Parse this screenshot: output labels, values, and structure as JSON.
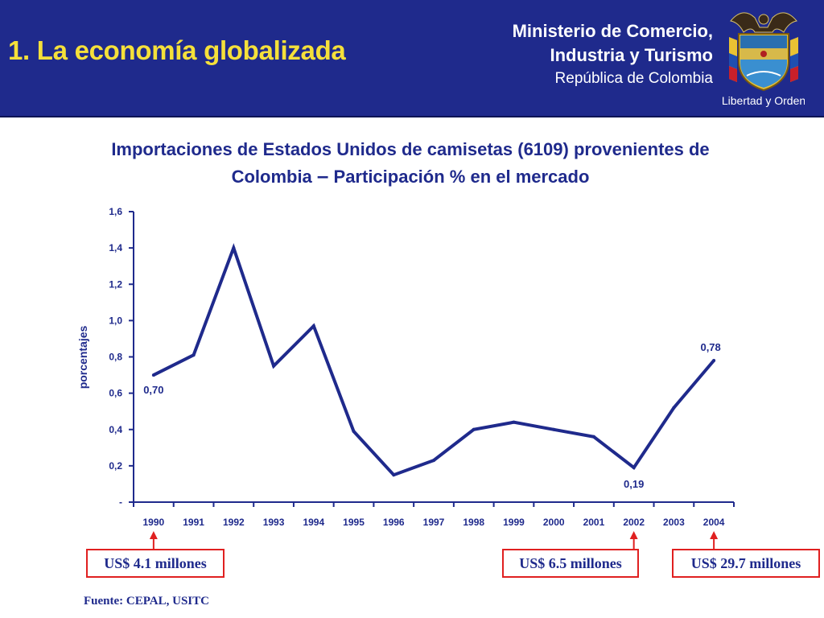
{
  "header": {
    "title": "1. La economía globalizada",
    "ministry_line1": "Ministerio de Comercio,",
    "ministry_line2": "Industria y Turismo",
    "ministry_line3": "República de Colombia",
    "crest_motto": "Libertad y Orden"
  },
  "chart_title": {
    "line1": "Importaciones de Estados Unidos de camisetas (6109) provenientes de",
    "line2a": "Colombia",
    "dash": "–",
    "line2b": "Participación % en el mercado"
  },
  "chart_data": {
    "type": "line",
    "title": "Importaciones de Estados Unidos de camisetas (6109) provenientes de Colombia – Participación % en el mercado",
    "xlabel": "",
    "ylabel": "porcentajes",
    "ylim": [
      0,
      1.6
    ],
    "yticks": [
      0,
      0.2,
      0.4,
      0.6,
      0.8,
      1.0,
      1.2,
      1.4,
      1.6
    ],
    "ytick_labels": [
      "-",
      "0,2",
      "0,4",
      "0,6",
      "0,8",
      "1,0",
      "1,2",
      "1,4",
      "1,6"
    ],
    "categories": [
      "1990",
      "1991",
      "1992",
      "1993",
      "1994",
      "1995",
      "1996",
      "1997",
      "1998",
      "1999",
      "2000",
      "2001",
      "2002",
      "2003",
      "2004"
    ],
    "series": [
      {
        "values": [
          0.7,
          0.81,
          1.4,
          0.75,
          0.97,
          0.39,
          0.15,
          0.23,
          0.4,
          0.44,
          0.4,
          0.36,
          0.19,
          0.52,
          0.78
        ]
      }
    ],
    "data_labels": [
      {
        "index": 0,
        "text": "0,70"
      },
      {
        "index": 12,
        "text": "0,19"
      },
      {
        "index": 14,
        "text": "0,78"
      }
    ],
    "line_color": "#1f2a8c",
    "grid": false,
    "legend": "none"
  },
  "callouts": [
    {
      "text": "US$ 4.1 millones",
      "year": "1990"
    },
    {
      "text": "US$ 6.5 millones",
      "year": "2002"
    },
    {
      "text": "US$ 29.7 millones",
      "year": "2004"
    }
  ],
  "source": "Fuente: CEPAL, USITC",
  "colors": {
    "header_bg": "#1f2a8c",
    "title_yellow": "#f5e03a",
    "accent_red": "#e02020"
  }
}
